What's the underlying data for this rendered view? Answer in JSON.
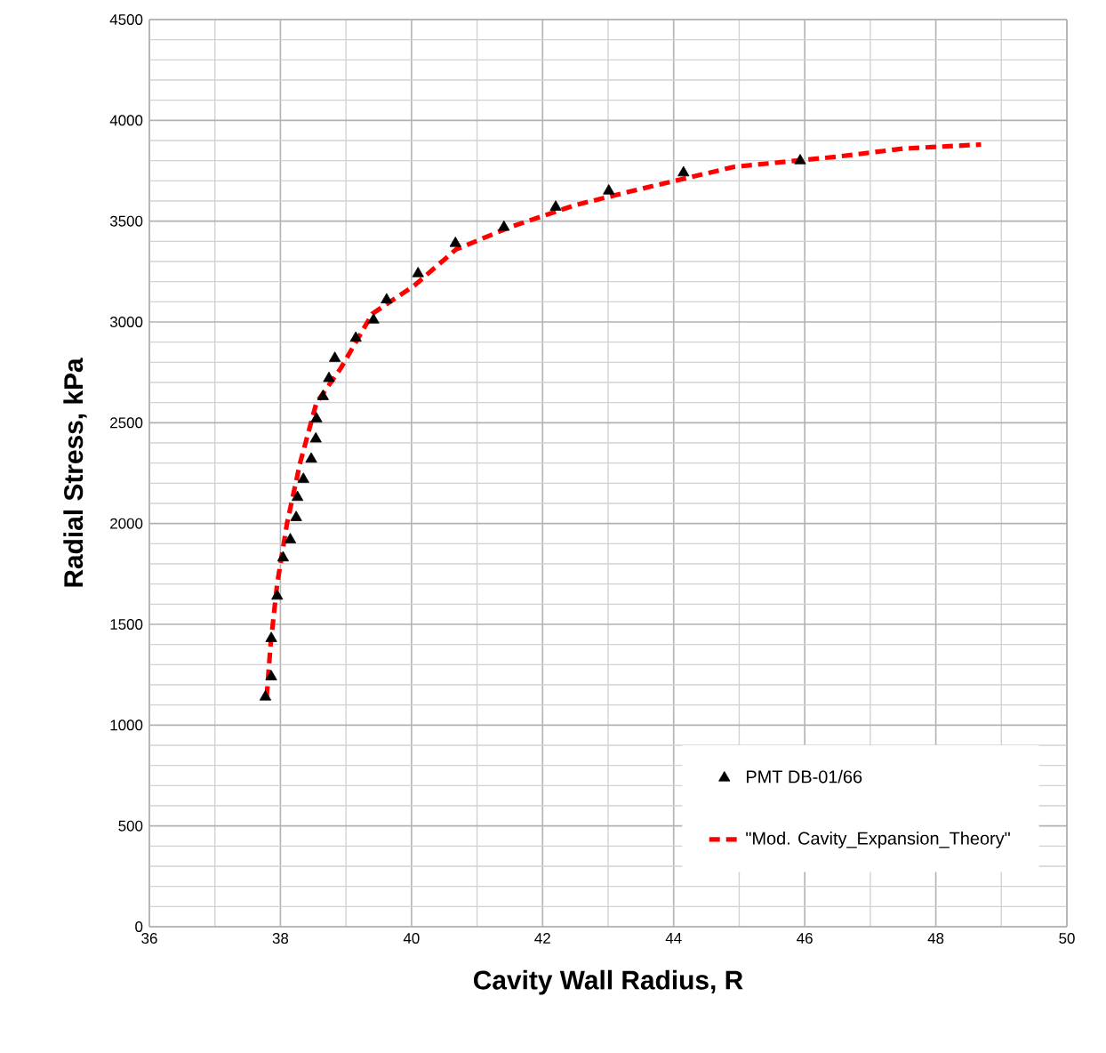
{
  "chart_data": {
    "type": "scatter",
    "xlabel": "Cavity Wall Radius, R",
    "ylabel": "Radial Stress, kPa",
    "xlim": [
      36,
      50
    ],
    "ylim": [
      0,
      4500
    ],
    "xticks": [
      36,
      38,
      40,
      42,
      44,
      46,
      48,
      50
    ],
    "yticks": [
      0,
      500,
      1000,
      1500,
      2000,
      2500,
      3000,
      3500,
      4000,
      4500
    ],
    "grid": true,
    "legend": "bottom right",
    "series": [
      {
        "name": "PMT DB-01/66",
        "color": "#000000",
        "marker": "triangle",
        "x": [
          37.77,
          37.86,
          37.86,
          37.95,
          38.04,
          38.15,
          38.24,
          38.26,
          38.35,
          38.47,
          38.54,
          38.55,
          38.65,
          38.74,
          38.83,
          39.15,
          39.42,
          39.62,
          40.1,
          40.67,
          41.41,
          42.2,
          43.01,
          44.15,
          45.93
        ],
        "values": [
          1140,
          1240,
          1430,
          1640,
          1830,
          1920,
          2030,
          2130,
          2220,
          2320,
          2420,
          2520,
          2630,
          2720,
          2820,
          2920,
          3010,
          3110,
          3240,
          3390,
          3470,
          3570,
          3650,
          3740,
          3800
        ]
      },
      {
        "name": "\"Mod. Cavity_Expansion_Theory\"",
        "type": "line",
        "color": "#ff0000",
        "line_style": "dashed",
        "marker": "none",
        "x": [
          37.79,
          37.85,
          37.95,
          38.1,
          38.3,
          38.55,
          38.92,
          39.4,
          40.04,
          40.68,
          41.5,
          42.5,
          43.5,
          44.93,
          46.5,
          47.5,
          48.69
        ],
        "values": [
          1140,
          1400,
          1700,
          2000,
          2300,
          2600,
          2770,
          3040,
          3180,
          3360,
          3470,
          3580,
          3660,
          3770,
          3820,
          3860,
          3880
        ]
      }
    ]
  }
}
